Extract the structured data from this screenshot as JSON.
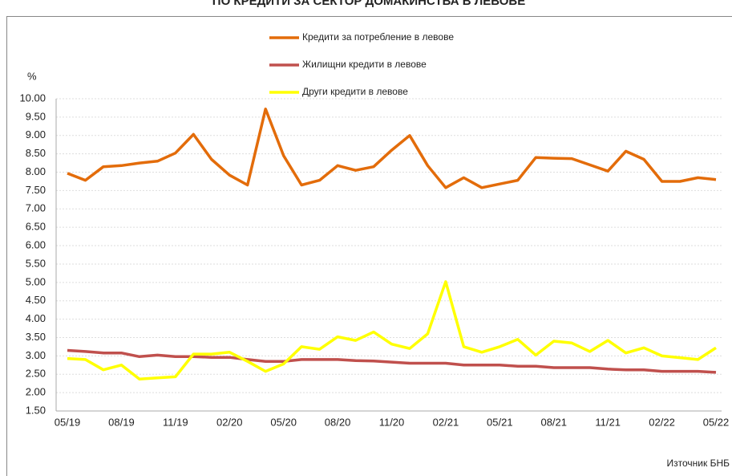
{
  "chart_data": {
    "type": "line",
    "title": "ПО КРЕДИТИ ЗА СЕКТОР ДОМАКИНСТВА В ЛЕВОВЕ",
    "y_label": "%",
    "source": "Източник БНБ",
    "categories": [
      "05/19",
      null,
      null,
      "08/19",
      null,
      null,
      "11/19",
      null,
      null,
      "02/20",
      null,
      null,
      "05/20",
      null,
      null,
      "08/20",
      null,
      null,
      "11/20",
      null,
      null,
      "02/21",
      null,
      null,
      "05/21",
      null,
      null,
      "08/21",
      null,
      null,
      "11/21",
      null,
      null,
      "02/22",
      null,
      null,
      "05/22"
    ],
    "series": [
      {
        "name": "Кредити за потребление в левове",
        "color": "#e36c0a",
        "values": [
          7.97,
          7.78,
          8.15,
          8.18,
          8.25,
          8.3,
          8.52,
          9.03,
          8.35,
          7.92,
          7.65,
          9.72,
          8.45,
          7.65,
          7.78,
          8.18,
          8.05,
          8.15,
          8.6,
          9.0,
          8.18,
          7.58,
          7.85,
          7.58,
          7.68,
          7.78,
          8.4,
          8.38,
          8.37,
          8.2,
          8.03,
          8.57,
          8.35,
          7.75,
          7.75,
          7.85,
          7.8
        ]
      },
      {
        "name": "Жилищни кредити в левове",
        "color": "#c0504d",
        "values": [
          3.15,
          3.12,
          3.08,
          3.08,
          2.98,
          3.02,
          2.98,
          2.98,
          2.96,
          2.96,
          2.9,
          2.85,
          2.85,
          2.9,
          2.9,
          2.9,
          2.87,
          2.86,
          2.83,
          2.8,
          2.8,
          2.8,
          2.75,
          2.75,
          2.75,
          2.72,
          2.72,
          2.68,
          2.68,
          2.68,
          2.64,
          2.62,
          2.62,
          2.58,
          2.58,
          2.58,
          2.55
        ]
      },
      {
        "name": "Други кредити в левове",
        "color": "#ffff00",
        "values": [
          2.93,
          2.9,
          2.62,
          2.75,
          2.37,
          2.4,
          2.43,
          3.05,
          3.05,
          3.1,
          2.85,
          2.58,
          2.78,
          3.25,
          3.18,
          3.52,
          3.42,
          3.65,
          3.32,
          3.2,
          3.6,
          5.02,
          3.25,
          3.1,
          3.25,
          3.45,
          3.02,
          3.4,
          3.35,
          3.12,
          3.42,
          3.08,
          3.22,
          3.0,
          2.95,
          2.9,
          3.22
        ]
      }
    ],
    "ylim": [
      1.5,
      10
    ],
    "yticks": [
      {
        "value": 1.5,
        "label": "1.50"
      },
      {
        "value": 2,
        "label": "2.00"
      },
      {
        "value": 2.5,
        "label": "2.50"
      },
      {
        "value": 3,
        "label": "3.00"
      },
      {
        "value": 3.5,
        "label": "3.50"
      },
      {
        "value": 4,
        "label": "4.00"
      },
      {
        "value": 4.5,
        "label": "4.50"
      },
      {
        "value": 5,
        "label": "5.00"
      },
      {
        "value": 5.5,
        "label": "5.50"
      },
      {
        "value": 6,
        "label": "6.00"
      },
      {
        "value": 6.5,
        "label": "6.50"
      },
      {
        "value": 7,
        "label": "7.00"
      },
      {
        "value": 7.5,
        "label": "7.50"
      },
      {
        "value": 8,
        "label": "8.00"
      },
      {
        "value": 8.5,
        "label": "8.50"
      },
      {
        "value": 9,
        "label": "9.00"
      },
      {
        "value": 9.5,
        "label": "9.50"
      },
      {
        "value": 10,
        "label": "10.00"
      }
    ],
    "grid": true,
    "legend": "top"
  }
}
